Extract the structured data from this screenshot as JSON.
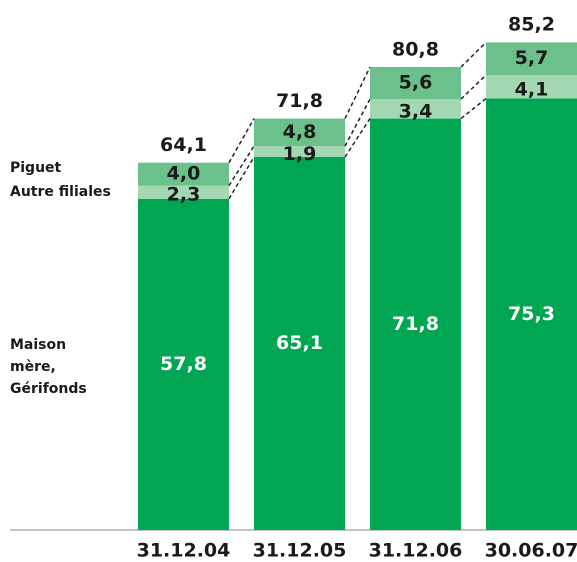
{
  "chart_data": {
    "type": "stacked-bar",
    "categories": [
      "31.12.04",
      "31.12.05",
      "31.12.06",
      "30.06.07"
    ],
    "series": [
      {
        "name": "Maison mère, Gérifonds",
        "color": "#00a651",
        "values": [
          57.8,
          65.1,
          71.8,
          75.3
        ],
        "value_labels": [
          "57,8",
          "65,1",
          "71,8",
          "75,3"
        ]
      },
      {
        "name": "Autre filiales",
        "color": "#a3d8b3",
        "values": [
          2.3,
          1.9,
          3.4,
          4.1
        ],
        "value_labels": [
          "2,3",
          "1,9",
          "3,4",
          "4,1"
        ]
      },
      {
        "name": "Piguet",
        "color": "#6cc08c",
        "values": [
          4.0,
          4.8,
          5.6,
          5.7
        ],
        "value_labels": [
          "4,0",
          "4,8",
          "5,6",
          "5,7"
        ]
      }
    ],
    "totals": [
      64.1,
      71.8,
      80.8,
      85.2
    ],
    "total_labels": [
      "64,1",
      "71,8",
      "80,8",
      "85,2"
    ]
  }
}
